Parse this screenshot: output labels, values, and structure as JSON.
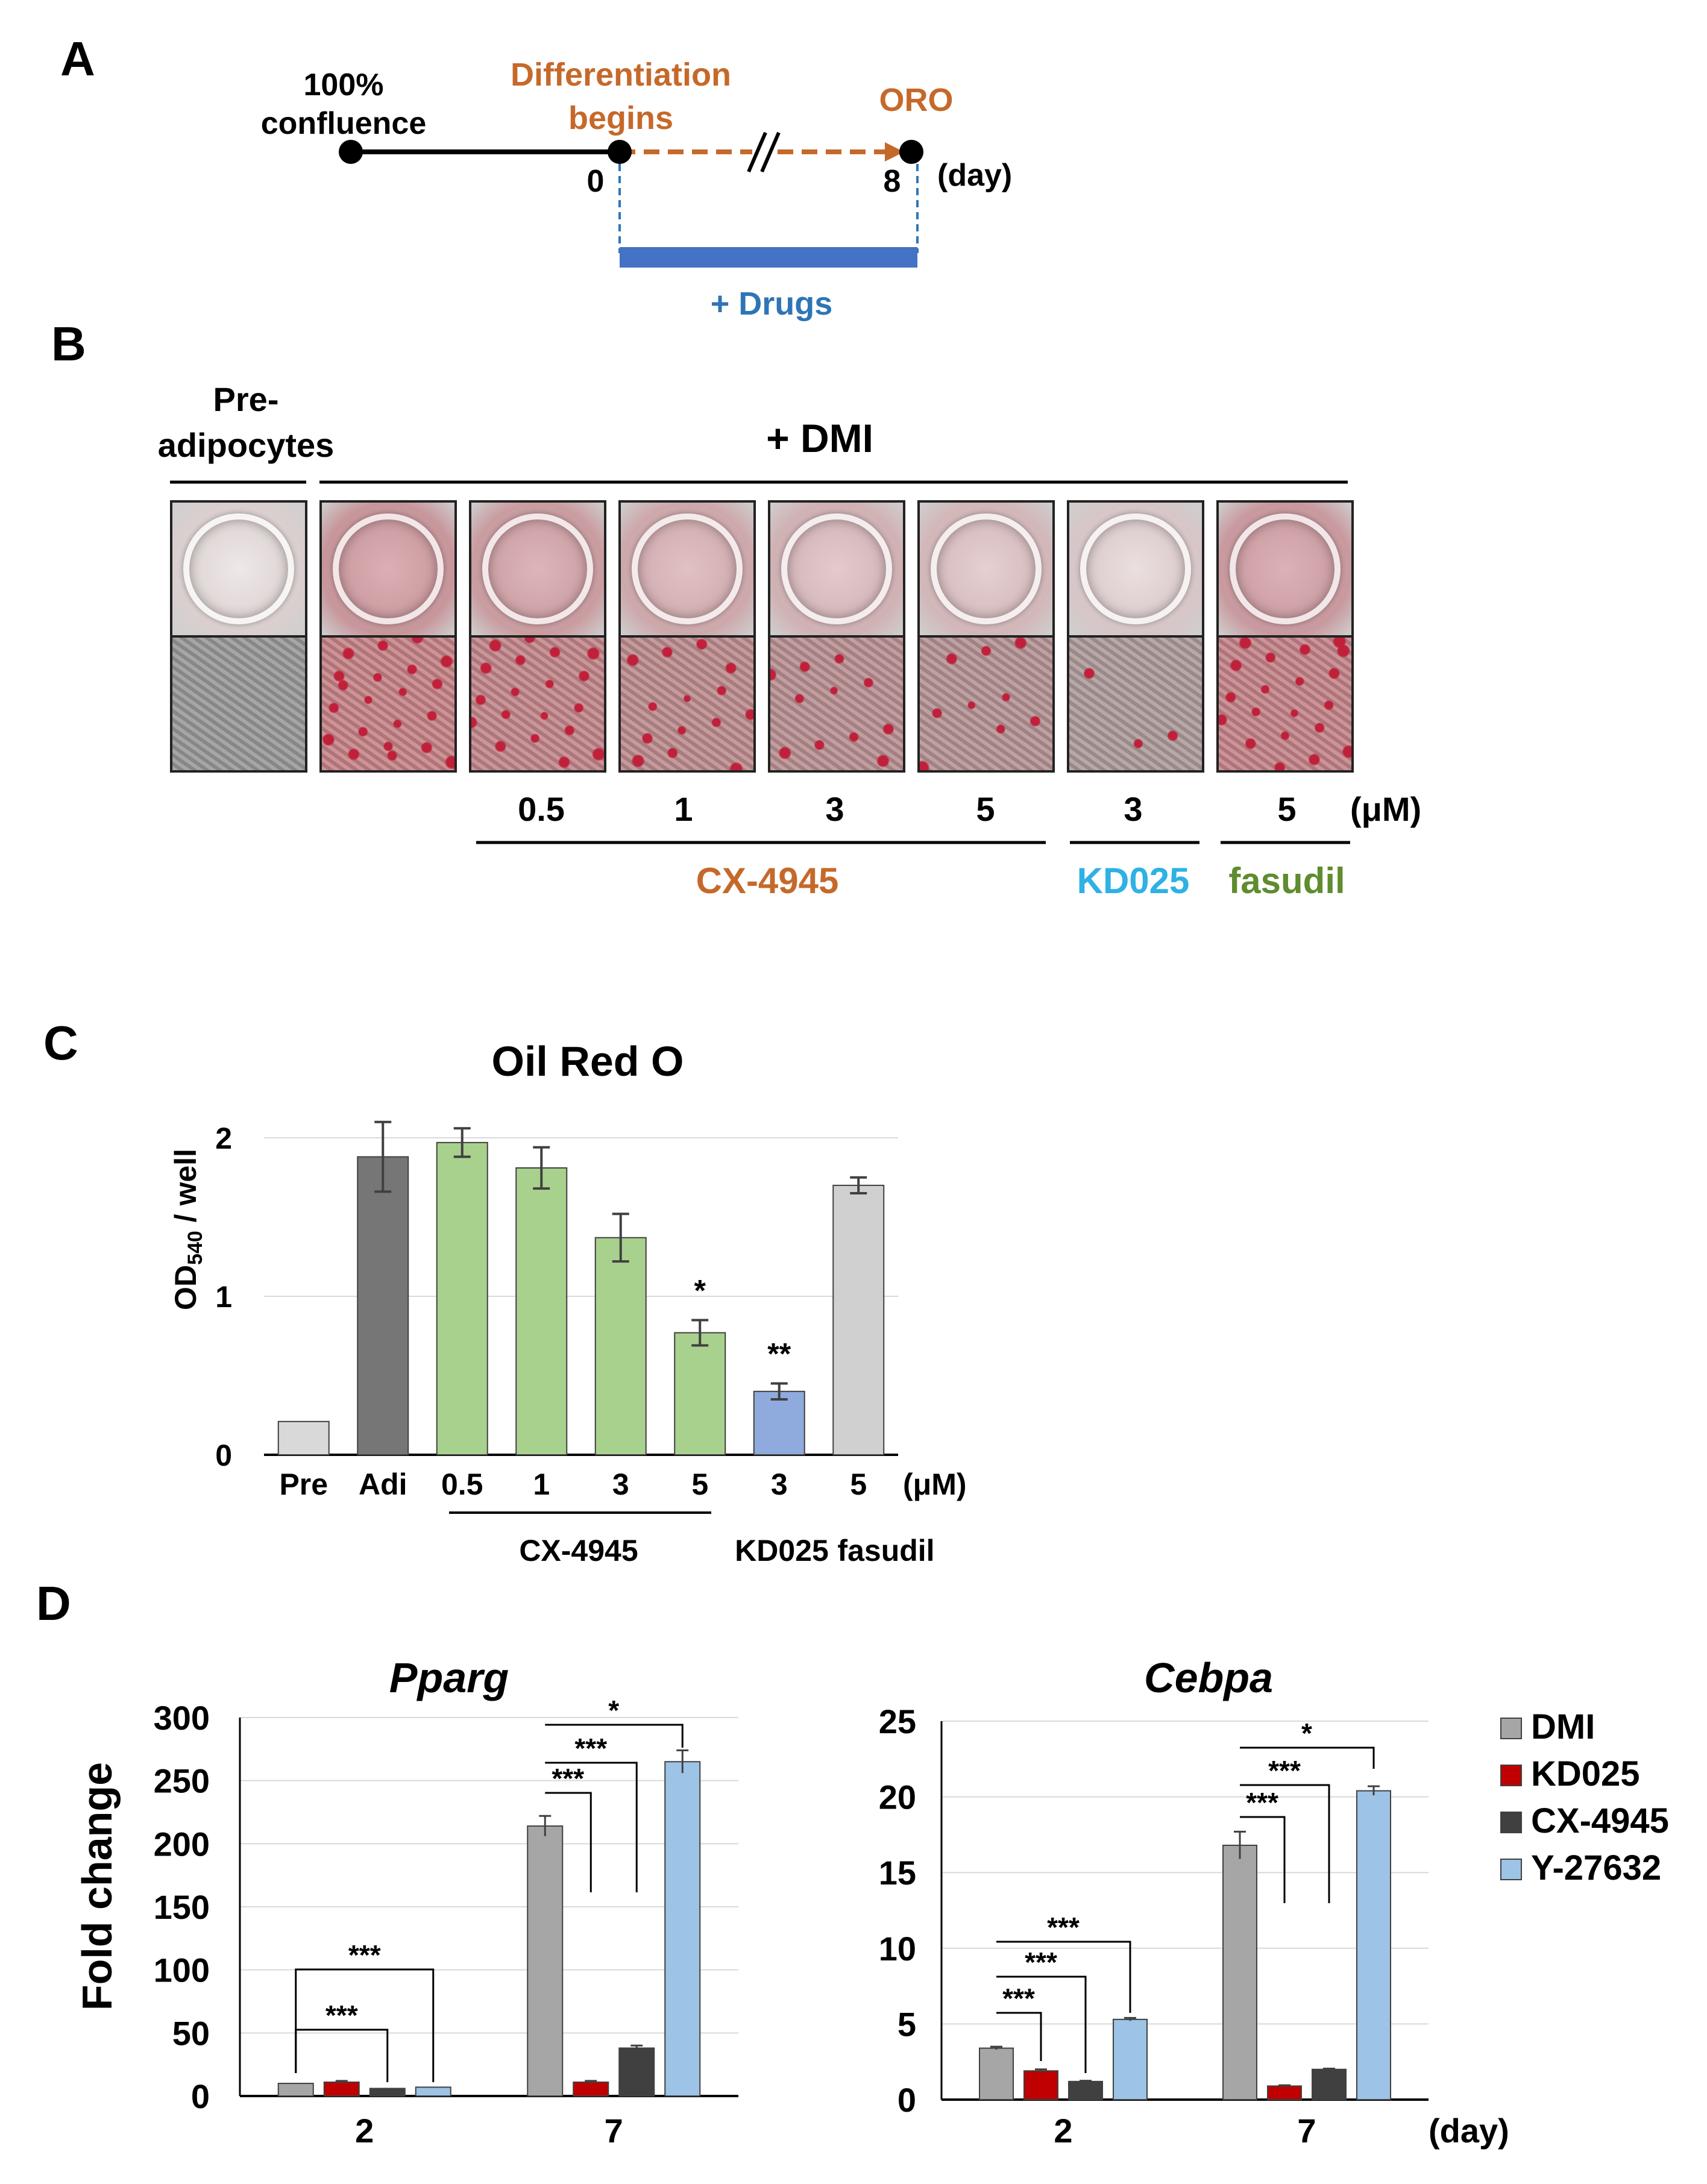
{
  "panel_labels": {
    "a": "A",
    "b": "B",
    "c": "C",
    "d": "D"
  },
  "panel_a": {
    "confluence_line1": "100%",
    "confluence_line2": "confluence",
    "differentiation_line1": "Differentiation",
    "differentiation_line2": "begins",
    "oro": "ORO",
    "day0": "0",
    "day8": "8",
    "day_unit": "(day)",
    "drugs": "+ Drugs",
    "colors": {
      "timeline": "#000000",
      "orange": "#c5692a",
      "blue": "#4472c4",
      "drugs_text": "#2e75b6"
    }
  },
  "panel_b": {
    "pre_line1": "Pre-",
    "pre_line2": "adipocytes",
    "dmi": "+ DMI",
    "concentrations": [
      "0.5",
      "1",
      "3",
      "5",
      "3",
      "5"
    ],
    "unit": "(μM)",
    "drugs": [
      {
        "name": "CX-4945",
        "color": "#c5692a"
      },
      {
        "name": "KD025",
        "color": "#2eb1e4"
      },
      {
        "name": "fasudil",
        "color": "#5f8c2e"
      }
    ],
    "stain_levels": [
      0.0,
      0.95,
      0.85,
      0.65,
      0.5,
      0.4,
      0.15,
      0.9
    ]
  },
  "chart_data": [
    {
      "type": "bar",
      "title": "Oil Red O",
      "ylabel": "OD540 / well",
      "ylabel_main": "OD",
      "ylabel_sub": "540",
      "ylabel_rest": " / well",
      "ylim": [
        0,
        2
      ],
      "yticks": [
        "0",
        "1",
        "2"
      ],
      "grid": true,
      "categories": [
        "Pre",
        "Adi",
        "0.5",
        "1",
        "3",
        "5",
        "3",
        "5"
      ],
      "values": [
        0.21,
        1.88,
        1.97,
        1.81,
        1.37,
        0.77,
        0.4,
        1.7
      ],
      "errors": [
        0.0,
        0.22,
        0.09,
        0.13,
        0.15,
        0.08,
        0.05,
        0.05
      ],
      "bar_colors": [
        "#d9d9d9",
        "#767676",
        "#a9d18e",
        "#a9d18e",
        "#a9d18e",
        "#a9d18e",
        "#8faadc",
        "#d0d0d0"
      ],
      "significance": [
        {
          "index": 5,
          "label": "*"
        },
        {
          "index": 6,
          "label": "**"
        }
      ],
      "unit": "(μM)",
      "groups": [
        "CX-4945",
        "KD025",
        "fasudil"
      ]
    },
    {
      "type": "bar",
      "title": "Pparg",
      "ylabel": "Fold change",
      "ylim": [
        0,
        300
      ],
      "yticks": [
        "0",
        "50",
        "100",
        "150",
        "200",
        "250",
        "300"
      ],
      "grid": true,
      "categories": [
        "2",
        "7"
      ],
      "series": [
        {
          "name": "DMI",
          "values": [
            10,
            214
          ],
          "errors": [
            0,
            8
          ],
          "color": "#a6a6a6"
        },
        {
          "name": "KD025",
          "values": [
            11,
            11
          ],
          "errors": [
            1,
            1
          ],
          "color": "#c00000"
        },
        {
          "name": "CX-4945",
          "values": [
            6,
            38
          ],
          "errors": [
            0,
            2
          ],
          "color": "#404040"
        },
        {
          "name": "Y-27632",
          "values": [
            7,
            265
          ],
          "errors": [
            0,
            9
          ],
          "color": "#9dc3e6"
        }
      ],
      "significance": [
        "***",
        "***",
        "***",
        "***",
        "*"
      ]
    },
    {
      "type": "bar",
      "title": "Cebpa",
      "ylim": [
        0,
        25
      ],
      "yticks": [
        "0",
        "5",
        "10",
        "15",
        "20",
        "25"
      ],
      "grid": true,
      "categories": [
        "2",
        "7"
      ],
      "xunit": "(day)",
      "series": [
        {
          "name": "DMI",
          "values": [
            3.4,
            16.8
          ],
          "errors": [
            0.1,
            0.9
          ],
          "color": "#a6a6a6"
        },
        {
          "name": "KD025",
          "values": [
            1.9,
            0.9
          ],
          "errors": [
            0.1,
            0.05
          ],
          "color": "#c00000"
        },
        {
          "name": "CX-4945",
          "values": [
            1.2,
            2.0
          ],
          "errors": [
            0.05,
            0.05
          ],
          "color": "#404040"
        },
        {
          "name": "Y-27632",
          "values": [
            5.3,
            20.4
          ],
          "errors": [
            0.1,
            0.3
          ],
          "color": "#9dc3e6"
        }
      ],
      "significance": [
        "***",
        "***",
        "***",
        "***",
        "***",
        "*"
      ],
      "legend_position": "right"
    }
  ]
}
